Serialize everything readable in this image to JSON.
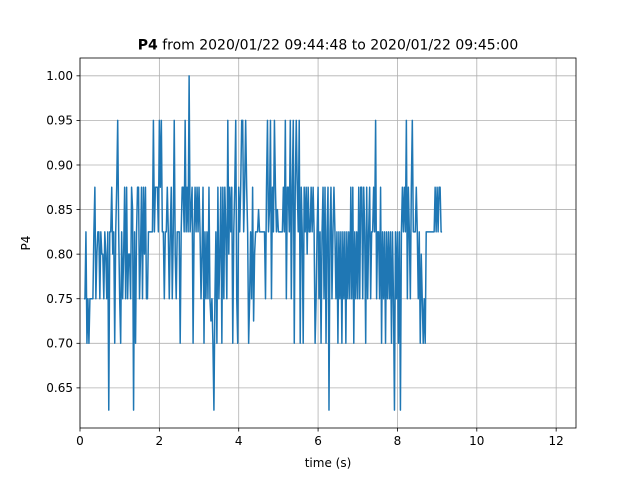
{
  "chart_data": {
    "type": "line",
    "title": {
      "bold_part": "P4",
      "rest": " from 2020/01/22 09:44:48 to 2020/01/22 09:45:00"
    },
    "xlabel": "time (s)",
    "ylabel": "P4",
    "xlim": [
      0,
      12.5
    ],
    "ylim": [
      0.605,
      1.02
    ],
    "x_ticks": [
      0,
      2,
      4,
      6,
      8,
      10,
      12
    ],
    "y_ticks": [
      0.65,
      0.7,
      0.75,
      0.8,
      0.85,
      0.9,
      0.95,
      1.0
    ],
    "x_tick_labels": [
      "0",
      "2",
      "4",
      "6",
      "8",
      "10",
      "12"
    ],
    "y_tick_labels": [
      "0.65",
      "0.70",
      "0.75",
      "0.80",
      "0.85",
      "0.90",
      "0.95",
      "1.00"
    ],
    "grid": true,
    "series": [
      {
        "color": "#1f77b4",
        "x_start": 0.1,
        "x_step": 0.025,
        "values": [
          0.75,
          0.75,
          0.825,
          0.7,
          0.75,
          0.7,
          0.75,
          0.75,
          0.75,
          0.75,
          0.825,
          0.875,
          0.75,
          0.8,
          0.825,
          0.825,
          0.75,
          0.825,
          0.8,
          0.8,
          0.75,
          0.825,
          0.8,
          0.75,
          0.825,
          0.625,
          0.825,
          0.825,
          0.875,
          0.8,
          0.825,
          0.7,
          0.825,
          0.875,
          0.95,
          0.825,
          0.75,
          0.7,
          0.825,
          0.75,
          0.8,
          0.875,
          0.75,
          0.875,
          0.75,
          0.8,
          0.8,
          0.75,
          0.875,
          0.85,
          0.625,
          0.825,
          0.7,
          0.825,
          0.875,
          0.875,
          0.75,
          0.8,
          0.875,
          0.75,
          0.875,
          0.8,
          0.875,
          0.75,
          0.75,
          0.825,
          0.825,
          0.825,
          0.825,
          0.825,
          0.95,
          0.825,
          0.875,
          0.875,
          0.875,
          0.825,
          0.95,
          0.875,
          0.95,
          0.825,
          0.825,
          0.75,
          0.825,
          0.825,
          0.875,
          0.825,
          0.75,
          0.825,
          0.875,
          0.75,
          0.825,
          0.95,
          0.8,
          0.75,
          0.825,
          0.825,
          0.825,
          0.7,
          0.825,
          0.875,
          0.875,
          0.825,
          0.95,
          0.825,
          0.875,
          0.825,
          1.0,
          0.825,
          0.85,
          0.875,
          0.7,
          0.825,
          0.875,
          0.825,
          0.875,
          0.825,
          0.875,
          0.825,
          0.75,
          0.8,
          0.875,
          0.7,
          0.825,
          0.75,
          0.825,
          0.75,
          0.875,
          0.75,
          0.725,
          0.75,
          0.7,
          0.625,
          0.75,
          0.825,
          0.7,
          0.875,
          0.75,
          0.8,
          0.875,
          0.7,
          0.875,
          0.75,
          0.875,
          0.825,
          0.75,
          0.95,
          0.8,
          0.875,
          0.825,
          0.875,
          0.7,
          0.825,
          0.875,
          0.95,
          0.75,
          0.7,
          0.875,
          0.825,
          0.875,
          0.95,
          0.95,
          0.825,
          0.875,
          0.95,
          0.875,
          0.825,
          0.7,
          0.75,
          0.825,
          0.75,
          0.875,
          0.725,
          0.8,
          0.825,
          0.825,
          0.825,
          0.85,
          0.825,
          0.825,
          0.825,
          0.825,
          0.825,
          0.825,
          0.75,
          0.875,
          0.95,
          0.825,
          0.85,
          0.95,
          0.75,
          0.875,
          0.825,
          0.95,
          0.875,
          0.825,
          0.85,
          0.825,
          0.825,
          0.825,
          0.825,
          0.825,
          0.875,
          0.825,
          0.95,
          0.75,
          0.875,
          0.875,
          0.825,
          0.95,
          0.75,
          0.875,
          0.95,
          0.7,
          0.875,
          0.95,
          0.875,
          0.825,
          0.95,
          0.7,
          0.875,
          0.825,
          0.7,
          0.875,
          0.825,
          0.875,
          0.8,
          0.875,
          0.825,
          0.825,
          0.875,
          0.825,
          0.875,
          0.825,
          0.7,
          0.75,
          0.825,
          0.875,
          0.75,
          0.825,
          0.7,
          0.825,
          0.875,
          0.75,
          0.875,
          0.7,
          0.825,
          0.875,
          0.625,
          0.825,
          0.875,
          0.75,
          0.825,
          0.875,
          0.825,
          0.75,
          0.825,
          0.7,
          0.825,
          0.75,
          0.825,
          0.7,
          0.825,
          0.75,
          0.825,
          0.7,
          0.825,
          0.75,
          0.825,
          0.75,
          0.875,
          0.75,
          0.875,
          0.7,
          0.825,
          0.75,
          0.825,
          0.75,
          0.875,
          0.75,
          0.875,
          0.875,
          0.75,
          0.875,
          0.825,
          0.7,
          0.875,
          0.75,
          0.825,
          0.875,
          0.75,
          0.825,
          0.825,
          0.875,
          0.825,
          0.95,
          0.75,
          0.825,
          0.825,
          0.75,
          0.875,
          0.7,
          0.825,
          0.75,
          0.825,
          0.7,
          0.825,
          0.75,
          0.825,
          0.75,
          0.825,
          0.7,
          0.825,
          0.75,
          0.625,
          0.825,
          0.75,
          0.825,
          0.7,
          0.825,
          0.625,
          0.825,
          0.875,
          0.825,
          0.875,
          0.825,
          0.95,
          0.75,
          0.875,
          0.825,
          0.75,
          0.875,
          0.95,
          0.825,
          0.825,
          0.825,
          0.875,
          0.825,
          0.75,
          0.825,
          0.7,
          0.8,
          0.75,
          0.7,
          0.75,
          0.7,
          0.825,
          0.825,
          0.825,
          0.825,
          0.825,
          0.825,
          0.825,
          0.825,
          0.825,
          0.875,
          0.825,
          0.875,
          0.825,
          0.875,
          0.875,
          0.825,
          0.825
        ]
      }
    ]
  }
}
